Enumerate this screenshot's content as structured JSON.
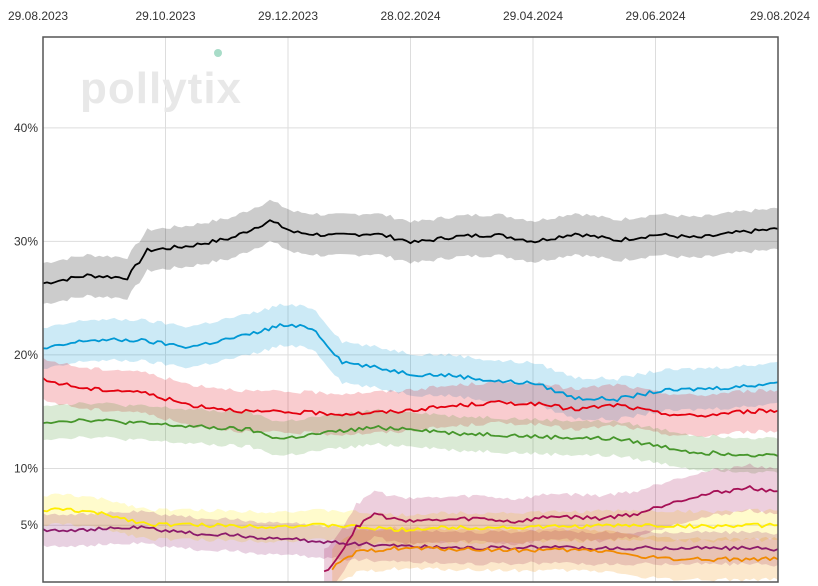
{
  "chart_data": {
    "type": "line",
    "title": "",
    "xlabel": "",
    "ylabel": "",
    "x_tick_labels": [
      "29.08.2023",
      "29.10.2023",
      "29.12.2023",
      "28.02.2024",
      "29.04.2024",
      "29.06.2024",
      "29.08.2024"
    ],
    "x_tick_dates": [
      "2023-08-29",
      "2023-10-29",
      "2023-12-29",
      "2024-02-28",
      "2024-04-29",
      "2024-06-29",
      "2024-08-29"
    ],
    "xlim": [
      "2023-08-29",
      "2024-08-29"
    ],
    "y_tick_labels": [
      "5%",
      "10%",
      "20%",
      "30%",
      "40%"
    ],
    "y_tick_values": [
      5,
      10,
      20,
      30,
      40
    ],
    "ylim": [
      0,
      48
    ],
    "grid": true,
    "watermark": "pollytix",
    "series": [
      {
        "color": "#000000",
        "x": [
          "2023-08-29",
          "2023-09-20",
          "2023-10-10",
          "2023-10-20",
          "2023-11-10",
          "2023-12-01",
          "2023-12-20",
          "2024-01-01",
          "2024-01-20",
          "2024-02-10",
          "2024-03-01",
          "2024-03-20",
          "2024-04-10",
          "2024-04-30",
          "2024-05-20",
          "2024-06-10",
          "2024-06-30",
          "2024-07-20",
          "2024-08-10",
          "2024-08-29"
        ],
        "values": [
          26.3,
          27.0,
          26.8,
          29.2,
          29.6,
          30.3,
          31.8,
          30.8,
          30.5,
          30.7,
          29.9,
          30.4,
          30.6,
          30.0,
          30.7,
          30.1,
          30.6,
          30.3,
          30.8,
          31.1
        ],
        "band": 1.8
      },
      {
        "color": "#0098d4",
        "x": [
          "2023-08-29",
          "2023-09-20",
          "2023-10-15",
          "2023-11-10",
          "2023-12-10",
          "2023-12-25",
          "2024-01-10",
          "2024-01-25",
          "2024-02-10",
          "2024-03-01",
          "2024-03-20",
          "2024-04-10",
          "2024-04-30",
          "2024-05-20",
          "2024-06-10",
          "2024-06-30",
          "2024-07-20",
          "2024-08-10",
          "2024-08-29"
        ],
        "values": [
          20.5,
          21.3,
          21.3,
          20.7,
          21.8,
          22.6,
          22.4,
          19.4,
          18.9,
          18.3,
          18.2,
          17.7,
          17.5,
          16.2,
          16.1,
          16.8,
          17.0,
          17.2,
          17.6
        ],
        "band": 1.8
      },
      {
        "color": "#e3000f",
        "x": [
          "2023-08-29",
          "2023-09-20",
          "2023-10-15",
          "2023-11-10",
          "2023-12-10",
          "2024-01-10",
          "2024-01-25",
          "2024-02-20",
          "2024-03-20",
          "2024-04-10",
          "2024-04-30",
          "2024-05-20",
          "2024-06-10",
          "2024-06-30",
          "2024-07-20",
          "2024-08-10",
          "2024-08-29"
        ],
        "values": [
          17.8,
          17.0,
          16.8,
          15.6,
          15.0,
          14.9,
          14.8,
          15.0,
          15.5,
          15.8,
          15.7,
          15.2,
          15.6,
          14.9,
          14.6,
          15.0,
          15.1
        ],
        "band": 1.8
      },
      {
        "color": "#46962b",
        "x": [
          "2023-08-29",
          "2023-09-20",
          "2023-10-15",
          "2023-11-10",
          "2023-12-10",
          "2023-12-25",
          "2024-01-20",
          "2024-02-10",
          "2024-03-01",
          "2024-03-20",
          "2024-04-10",
          "2024-04-30",
          "2024-05-20",
          "2024-06-10",
          "2024-06-30",
          "2024-07-20",
          "2024-08-10",
          "2024-08-29"
        ],
        "values": [
          14.1,
          14.3,
          14.0,
          13.7,
          13.4,
          12.6,
          13.2,
          13.6,
          13.5,
          13.1,
          13.0,
          12.8,
          12.7,
          12.6,
          12.0,
          11.4,
          11.3,
          11.1
        ],
        "band": 1.5
      },
      {
        "color": "#ffed00",
        "x": [
          "2023-08-29",
          "2023-09-10",
          "2023-10-01",
          "2023-10-20",
          "2023-11-20",
          "2023-12-20",
          "2024-01-20",
          "2024-02-20",
          "2024-03-20",
          "2024-04-20",
          "2024-05-20",
          "2024-06-20",
          "2024-07-20",
          "2024-08-29"
        ],
        "values": [
          6.3,
          6.4,
          5.9,
          5.1,
          5.0,
          4.9,
          5.0,
          4.6,
          4.8,
          4.8,
          4.9,
          5.0,
          4.9,
          5.0
        ],
        "band": 1.3
      },
      {
        "color": "#8b1a6b",
        "x": [
          "2023-08-29",
          "2023-09-20",
          "2023-10-15",
          "2023-11-10",
          "2023-12-10",
          "2024-01-10",
          "2024-02-10",
          "2024-03-10",
          "2024-04-10",
          "2024-05-10",
          "2024-06-10",
          "2024-06-30",
          "2024-07-30",
          "2024-08-29"
        ],
        "values": [
          4.6,
          4.6,
          4.8,
          4.3,
          4.0,
          3.6,
          3.3,
          3.1,
          3.0,
          3.1,
          2.9,
          3.0,
          3.0,
          2.9
        ],
        "band": 1.4
      },
      {
        "color": "#a50f55",
        "x": [
          "2024-01-16",
          "2024-01-24",
          "2024-02-01",
          "2024-02-10",
          "2024-02-20",
          "2024-03-10",
          "2024-04-01",
          "2024-04-20",
          "2024-05-10",
          "2024-06-01",
          "2024-06-20",
          "2024-07-10",
          "2024-07-30",
          "2024-08-15",
          "2024-08-29"
        ],
        "values": [
          0.8,
          2.5,
          4.8,
          6.0,
          5.5,
          5.4,
          5.6,
          5.3,
          5.8,
          5.6,
          6.0,
          7.2,
          7.9,
          8.3,
          8.0
        ],
        "band": 2.0
      },
      {
        "color": "#f18a00",
        "x": [
          "2024-01-20",
          "2024-02-01",
          "2024-02-20",
          "2024-03-20",
          "2024-04-20",
          "2024-05-20",
          "2024-06-10",
          "2024-06-20",
          "2024-07-20",
          "2024-08-29"
        ],
        "values": [
          1.2,
          2.6,
          3.0,
          2.9,
          2.8,
          2.8,
          2.7,
          2.2,
          2.0,
          2.0
        ],
        "band": 1.8
      }
    ]
  }
}
